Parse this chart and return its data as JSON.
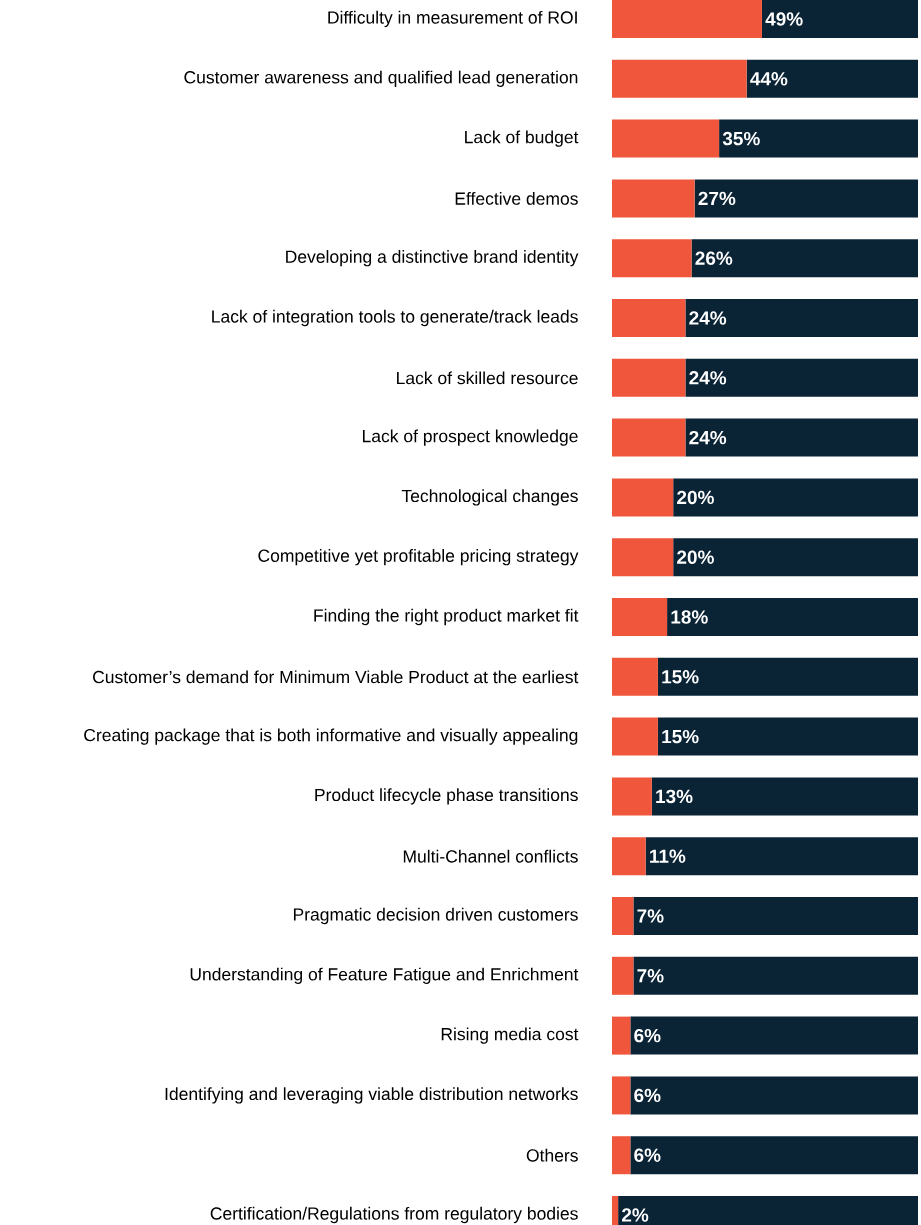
{
  "chart_data": {
    "type": "bar",
    "orientation": "horizontal",
    "stacked": true,
    "tick_labels": "y",
    "xlim": [
      0,
      100
    ],
    "categories": [
      "Difficulty in measurement of ROI",
      "Customer awareness and qualified lead generation",
      "Lack of budget",
      "Effective demos",
      "Developing a distinctive brand identity",
      "Lack of integration tools to generate/track leads",
      "Lack of skilled resource",
      "Lack of prospect knowledge",
      "Technological changes",
      "Competitive yet profitable pricing strategy",
      "Finding the right product market fit",
      "Customer’s demand for Minimum Viable Product at the earliest",
      "Creating package that is both informative and visually appealing",
      "Product lifecycle phase transitions",
      "Multi-Channel conflicts",
      "Pragmatic decision driven customers",
      "Understanding of Feature Fatigue and Enrichment",
      "Rising media cost",
      "Identifying and leveraging viable distribution networks",
      "Others",
      "Certification/Regulations from regulatory bodies"
    ],
    "series": [
      {
        "color": "#f0563b",
        "values": [
          49,
          44,
          35,
          27,
          26,
          24,
          24,
          24,
          20,
          20,
          18,
          15,
          15,
          13,
          11,
          7,
          7,
          6,
          6,
          6,
          2
        ],
        "value_labels": [
          "49%",
          "44%",
          "35%",
          "27%",
          "26%",
          "24%",
          "24%",
          "24%",
          "20%",
          "20%",
          "18%",
          "15%",
          "15%",
          "13%",
          "11%",
          "7%",
          "7%",
          "6%",
          "6%",
          "6%",
          "2%"
        ]
      },
      {
        "color": "#0a2436",
        "values": [
          51,
          56,
          65,
          73,
          74,
          76,
          76,
          76,
          80,
          80,
          82,
          85,
          85,
          87,
          89,
          93,
          93,
          94,
          94,
          94,
          98
        ]
      }
    ]
  }
}
